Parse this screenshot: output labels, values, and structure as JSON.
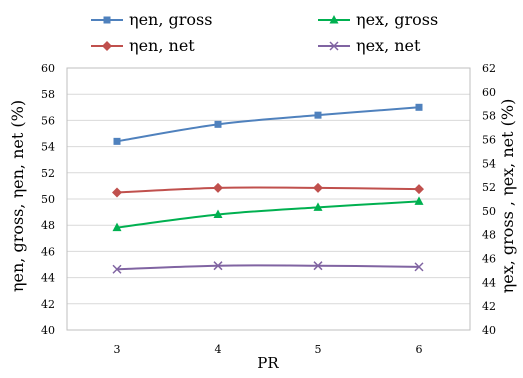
{
  "chart_data": {
    "type": "line",
    "x": [
      3,
      4,
      5,
      6
    ],
    "xlabel": "PR",
    "ylabel_left": "ηen, gross, ηen, net  (%)",
    "ylabel_right": "ηex, gross , ηex, net (%)",
    "ylim_left": [
      40,
      60
    ],
    "ylim_right": [
      40,
      62
    ],
    "left_ticks": [
      40,
      42,
      44,
      46,
      48,
      50,
      52,
      54,
      56,
      58,
      60
    ],
    "right_ticks": [
      40,
      42,
      44,
      46,
      48,
      50,
      52,
      54,
      56,
      58,
      60,
      62
    ],
    "grid": "horizontal",
    "legend_position": "top",
    "series": [
      {
        "name": "ηen, gross",
        "axis": "left",
        "color": "#4f81bd",
        "marker": "square",
        "values": [
          54.4,
          55.7,
          56.4,
          57.0
        ]
      },
      {
        "name": "ηen, net",
        "axis": "left",
        "color": "#c0504d",
        "marker": "diamond",
        "values": [
          50.5,
          50.85,
          50.85,
          50.75
        ]
      },
      {
        "name": "ηex, gross",
        "axis": "right",
        "color": "#00b050",
        "marker": "triangle",
        "values": [
          48.6,
          49.7,
          50.3,
          50.8
        ]
      },
      {
        "name": "ηex, net",
        "axis": "right",
        "color": "#8064a2",
        "marker": "x",
        "values": [
          45.1,
          45.4,
          45.4,
          45.3
        ]
      }
    ]
  }
}
